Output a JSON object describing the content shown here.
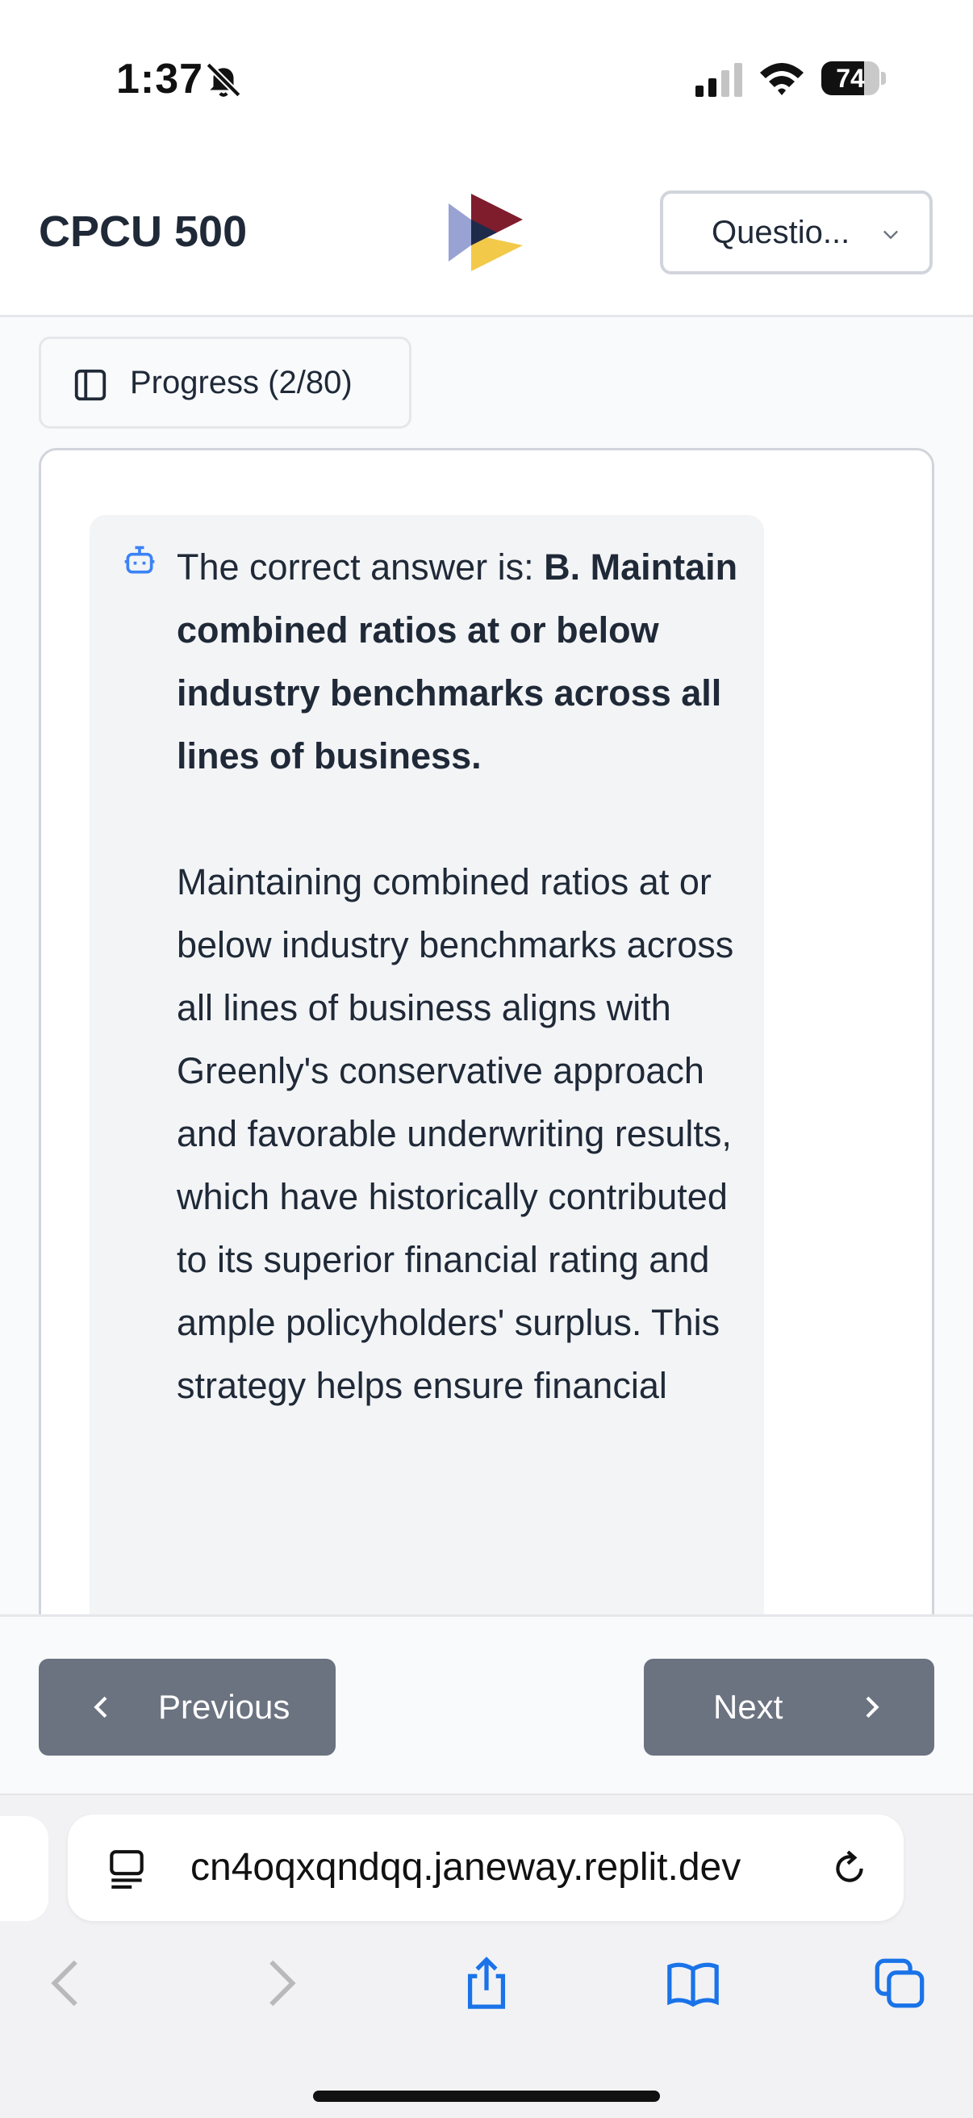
{
  "status_bar": {
    "time": "1:37",
    "battery": "74",
    "battery_level": 0.74
  },
  "header": {
    "title": "CPCU 500",
    "question_select_label": "Questio..."
  },
  "progress": {
    "label": "Progress (2/80)",
    "current": 2,
    "total": 80
  },
  "answer": {
    "intro": "The correct answer is: ",
    "answer_bold": "B. Maintain combined ratios at or below industry benchmarks across all lines of business.",
    "explanation": "Maintaining combined ratios at or below industry benchmarks across all lines of business aligns with Greenly's conservative approach and favorable underwriting results, which have historically contributed to its superior financial rating and ample policyholders' surplus. This strategy helps ensure financial"
  },
  "nav": {
    "previous_label": "Previous",
    "next_label": "Next"
  },
  "browser": {
    "url": "cn4oqxqndqq.janeway.replit.dev"
  },
  "colors": {
    "button_bg": "#6b7280",
    "bubble_bg": "#f3f4f6",
    "bot_icon": "#3b82f6",
    "logo_red": "#7f1d2d",
    "logo_yellow": "#f3c94a",
    "logo_navy": "#1e2a4a",
    "logo_lavender": "#98a2d3",
    "link_blue": "#1a73e8"
  },
  "icons": [
    "bell-slash-icon",
    "signal-icon",
    "wifi-icon",
    "battery-icon",
    "app-logo",
    "chevron-down-icon",
    "panel-icon",
    "bot-icon",
    "chevron-left-icon",
    "chevron-right-icon",
    "reader-icon",
    "reload-icon",
    "back-icon",
    "forward-icon",
    "share-icon",
    "bookmarks-icon",
    "tabs-icon"
  ]
}
